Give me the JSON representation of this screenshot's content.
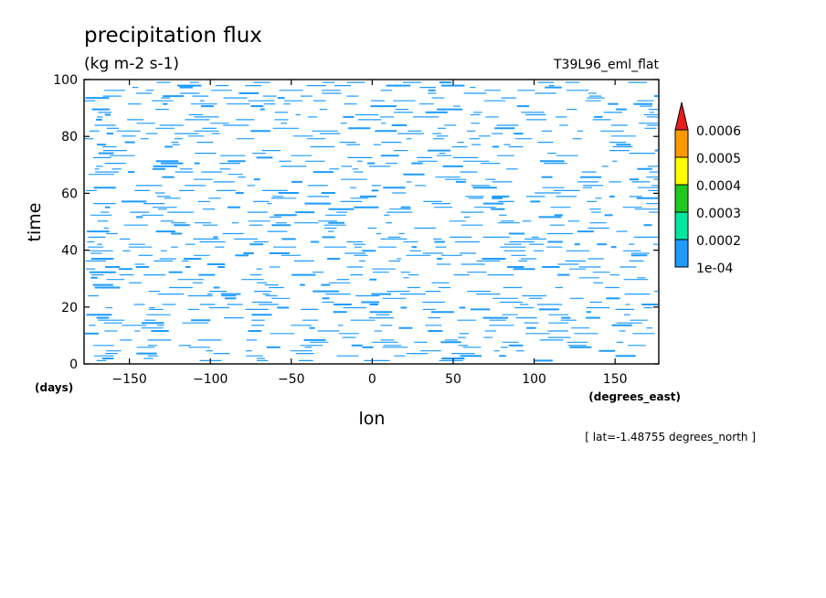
{
  "chart_data": {
    "type": "heatmap",
    "title": "precipitation flux",
    "units": "(kg m-2 s-1)",
    "dataset": "T39L96_eml_flat",
    "xlabel": "lon",
    "xunits": "(degrees_east)",
    "ylabel": "time",
    "yunits": "(days)",
    "xlim": [
      -178,
      177
    ],
    "ylim": [
      0,
      100
    ],
    "xticks": [
      -150,
      -100,
      -50,
      0,
      50,
      100,
      150
    ],
    "xtick_labels": [
      "−150",
      "−100",
      "−50",
      "0",
      "50",
      "100",
      "150"
    ],
    "yticks": [
      0,
      20,
      40,
      60,
      80,
      100
    ],
    "ytick_labels": [
      "0",
      "20",
      "40",
      "60",
      "80",
      "100"
    ],
    "colorbar": {
      "levels": [
        "1e-04",
        "0.0002",
        "0.0003",
        "0.0004",
        "0.0005",
        "0.0006"
      ],
      "colors": [
        "#1e9bff",
        "#00e6a0",
        "#1ec81e",
        "#ffff00",
        "#ff9900",
        "#e61e1e"
      ],
      "extend": "max"
    },
    "annotation": "[ lat=-1.48755 degrees_north ]",
    "pattern": "sparse horizontal streaks of light rain (1e-04 to 0.0002) scattered across all longitudes and times"
  }
}
